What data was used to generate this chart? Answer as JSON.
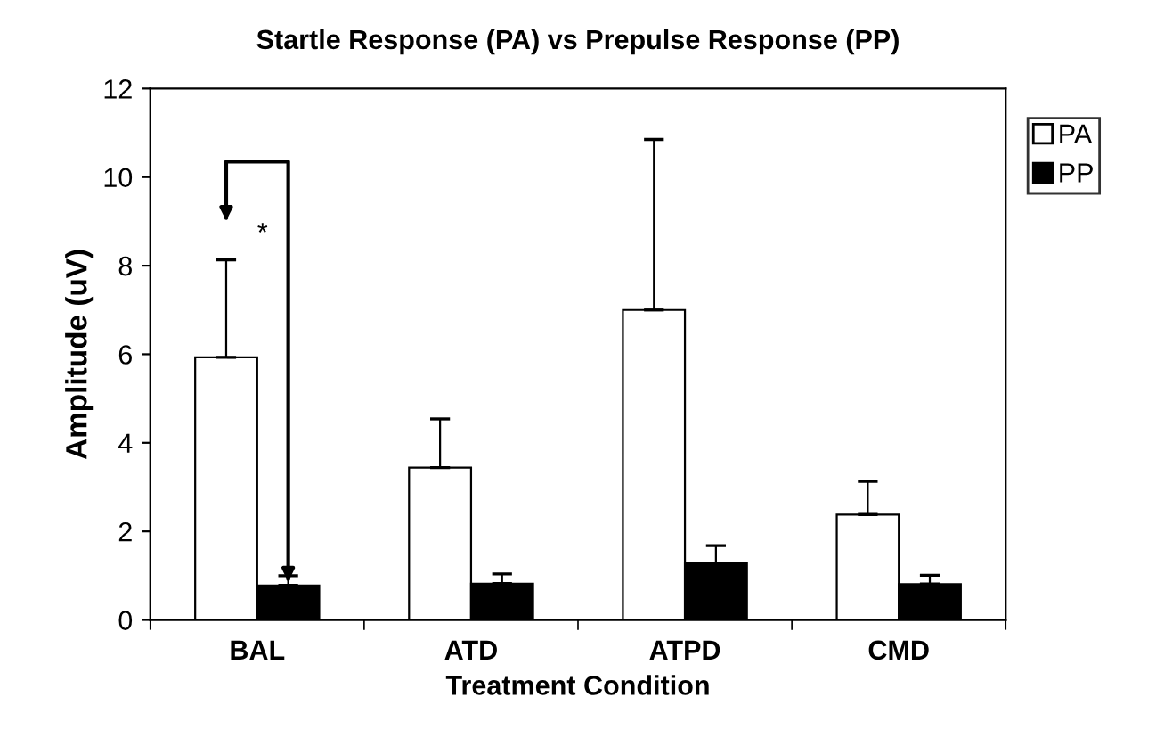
{
  "chart_data": {
    "type": "bar",
    "title": "Startle Response (PA) vs Prepulse Response (PP)",
    "xlabel": "Treatment Condition",
    "ylabel": "Amplitude (uV)",
    "categories": [
      "BAL",
      "ATD",
      "ATPD",
      "CMD"
    ],
    "series": [
      {
        "name": "PA",
        "color": "#ffffff",
        "values": [
          5.93,
          3.44,
          7.0,
          2.38
        ],
        "errors": [
          [
            5.93,
            8.13
          ],
          [
            3.44,
            4.54
          ],
          [
            7.0,
            10.85
          ],
          [
            2.38,
            3.13
          ]
        ]
      },
      {
        "name": "PP",
        "color": "#000000",
        "values": [
          0.78,
          0.82,
          1.28,
          0.81
        ],
        "errors": [
          [
            0.78,
            1.0
          ],
          [
            0.82,
            1.04
          ],
          [
            1.28,
            1.68
          ],
          [
            0.81,
            1.01
          ]
        ]
      }
    ],
    "annotations": [
      "*"
    ],
    "ylim": [
      0,
      12
    ],
    "yticks": [
      0,
      2,
      4,
      6,
      8,
      10,
      12
    ],
    "grid": false,
    "legend": "top right"
  }
}
